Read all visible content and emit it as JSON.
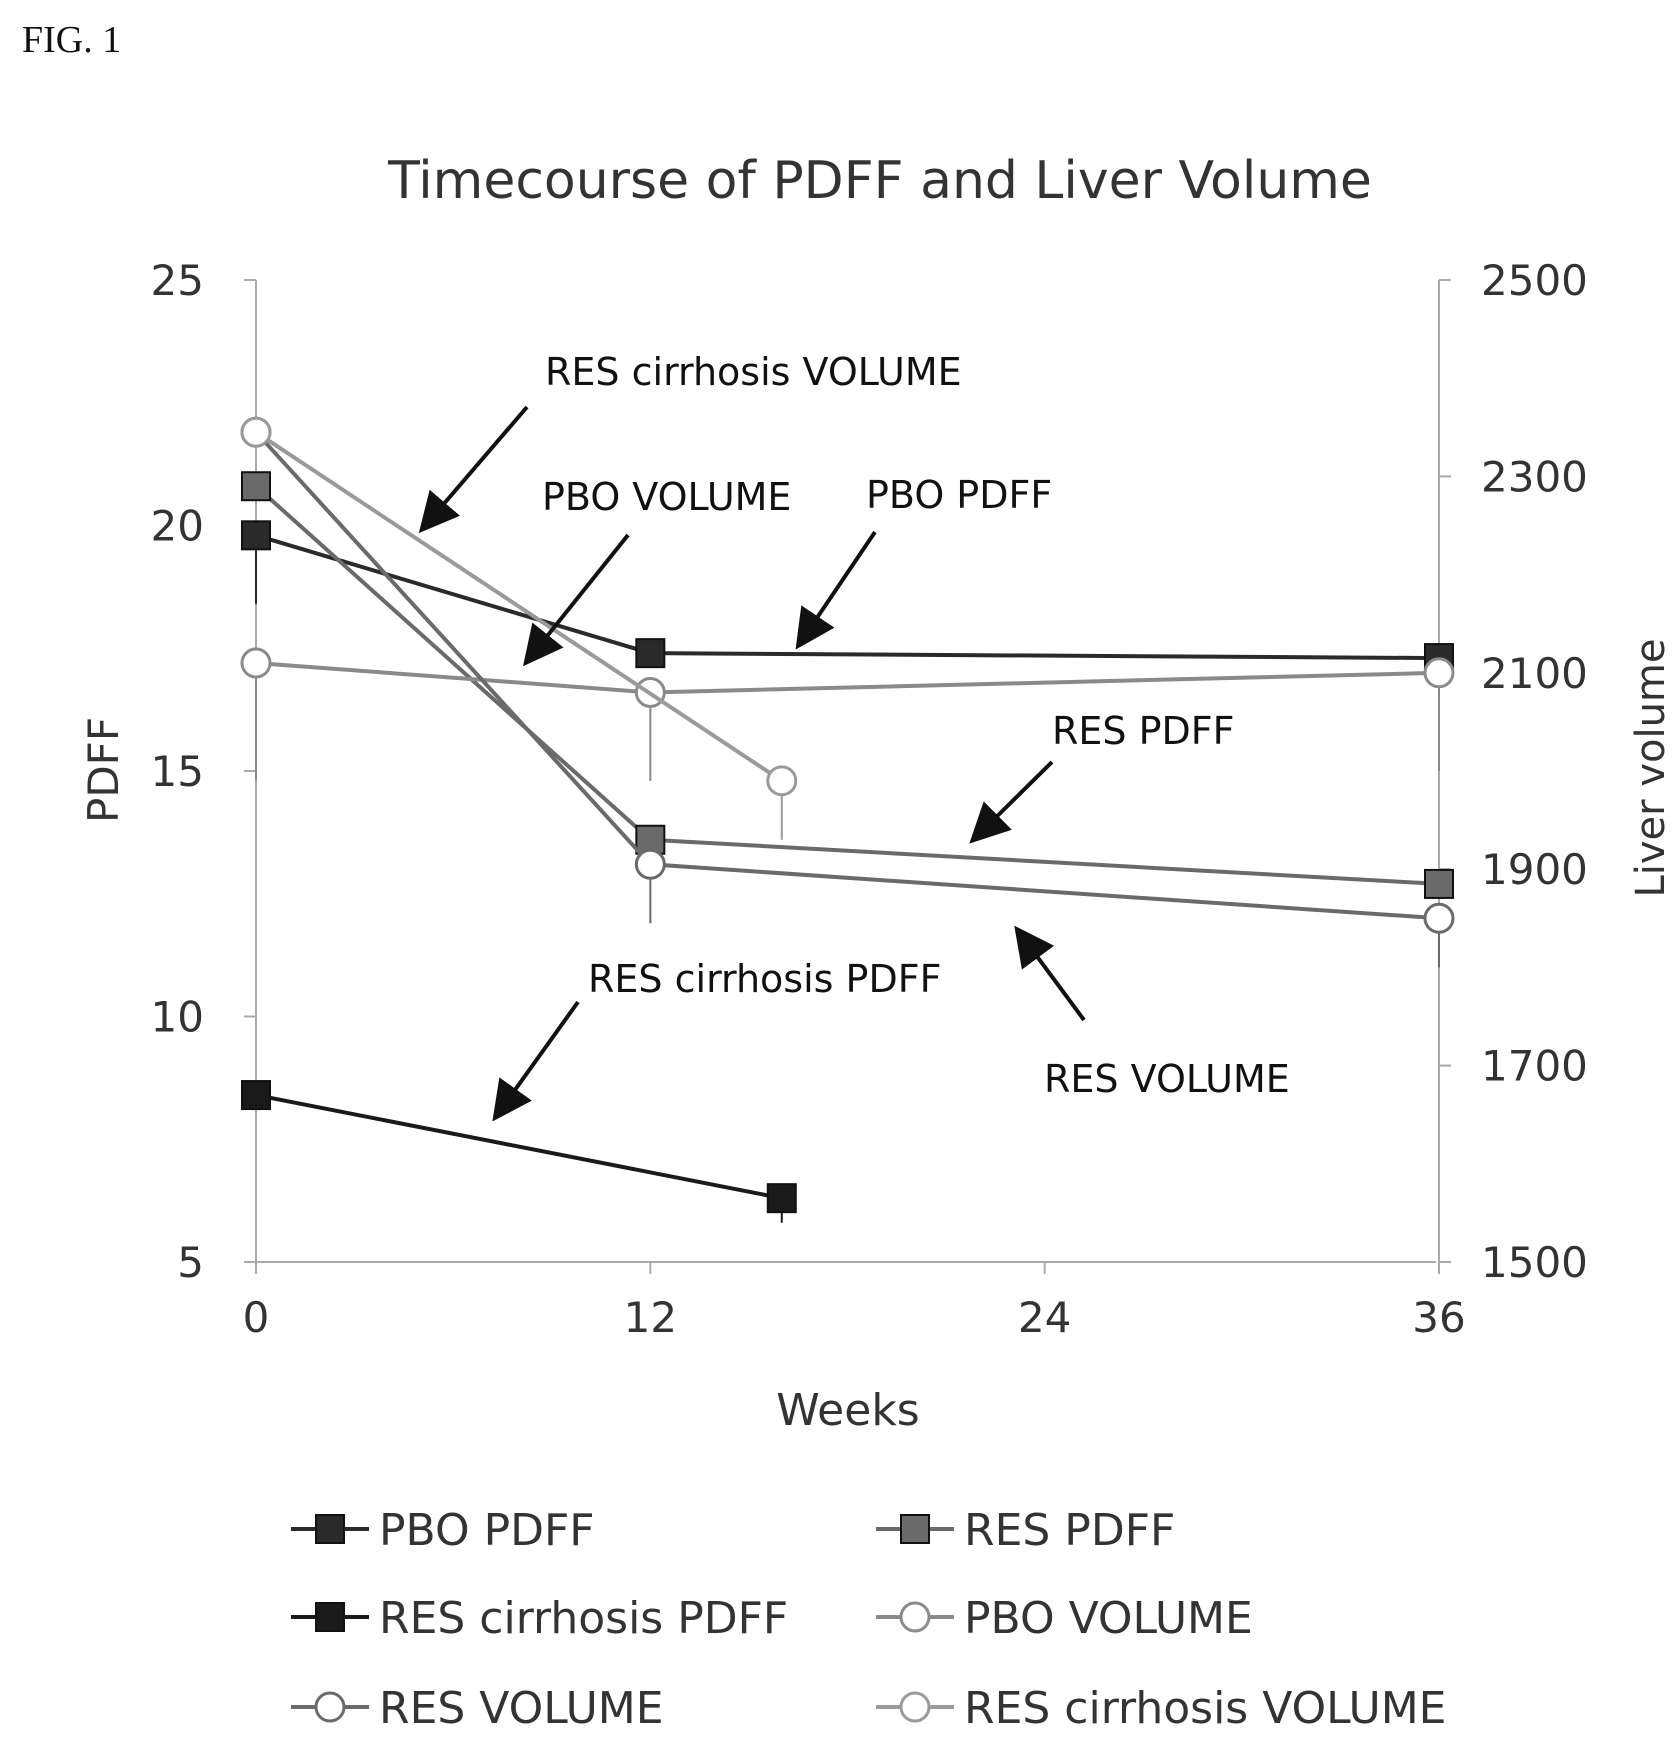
{
  "figure_label": "FIG. 1",
  "chart_data": {
    "type": "line",
    "title": "Timecourse of PDFF and Liver Volume",
    "xlabel": "Weeks",
    "ylabel": "PDFF",
    "y2label": "Liver volume",
    "xlim": [
      0,
      36
    ],
    "ylim": [
      5,
      25
    ],
    "y2lim": [
      1500,
      2500
    ],
    "x_ticks": [
      0,
      12,
      24,
      36
    ],
    "y_ticks": [
      5,
      10,
      15,
      20,
      25
    ],
    "y2_ticks": [
      1500,
      1700,
      1900,
      2100,
      2300,
      2500
    ],
    "grid": false,
    "legend_position": "bottom",
    "series": [
      {
        "name": "PBO PDFF",
        "axis": "left",
        "marker": "square-filled",
        "color": "#2a2a2a",
        "x": [
          0,
          12,
          36
        ],
        "y": [
          19.8,
          17.4,
          17.3
        ],
        "err_low": [
          18.4,
          null,
          null
        ]
      },
      {
        "name": "RES PDFF",
        "axis": "left",
        "marker": "square-filled",
        "color": "#6a6a6a",
        "x": [
          0,
          12,
          36
        ],
        "y": [
          20.8,
          13.6,
          12.7
        ],
        "err_low": [
          null,
          11.9,
          null
        ]
      },
      {
        "name": "RES cirrhosis PDFF",
        "axis": "left",
        "marker": "square-filled",
        "color": "#1a1a1a",
        "x": [
          0,
          16
        ],
        "y": [
          8.4,
          6.3
        ],
        "err_low": [
          null,
          5.8
        ]
      },
      {
        "name": "PBO VOLUME",
        "axis": "right",
        "marker": "circle-open",
        "color": "#8a8a8a",
        "x": [
          0,
          12,
          36
        ],
        "y": [
          2110,
          2080,
          2100
        ],
        "err_low": [
          1990,
          1990,
          2000
        ]
      },
      {
        "name": "RES VOLUME",
        "axis": "right",
        "marker": "circle-open",
        "color": "#6a6a6a",
        "x": [
          0,
          12,
          36
        ],
        "y": [
          2345,
          1905,
          1850
        ],
        "err_low": [
          null,
          null,
          1800
        ]
      },
      {
        "name": "RES cirrhosis VOLUME",
        "axis": "right",
        "marker": "circle-open",
        "color": "#9a9a9a",
        "x": [
          0,
          16
        ],
        "y": [
          2345,
          1990
        ],
        "err_low": [
          null,
          1930
        ]
      }
    ],
    "annotations": [
      {
        "text": "RES cirrhosis VOLUME",
        "for": "RES cirrhosis VOLUME"
      },
      {
        "text": "PBO VOLUME",
        "for": "PBO VOLUME"
      },
      {
        "text": "PBO PDFF",
        "for": "PBO PDFF"
      },
      {
        "text": "RES PDFF",
        "for": "RES PDFF"
      },
      {
        "text": "RES cirrhosis PDFF",
        "for": "RES cirrhosis PDFF"
      },
      {
        "text": "RES VOLUME",
        "for": "RES VOLUME"
      }
    ]
  }
}
